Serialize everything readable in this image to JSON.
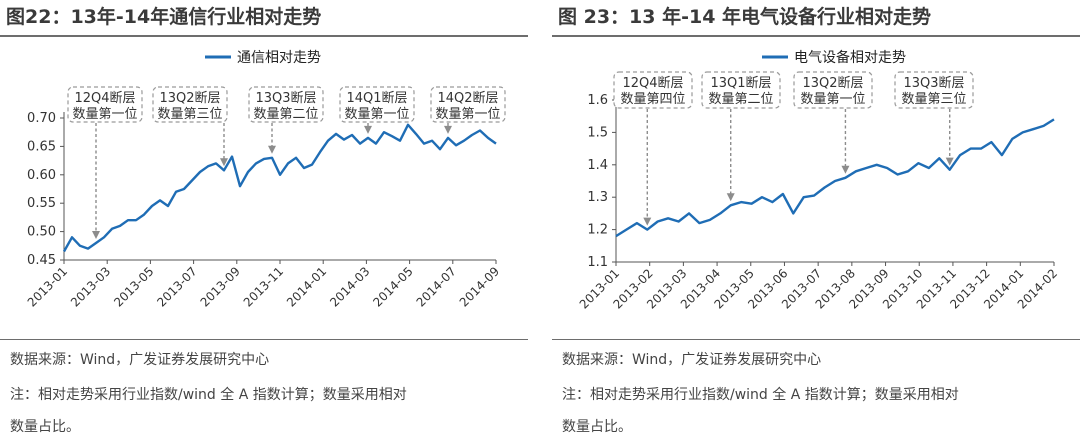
{
  "charts": [
    {
      "figure_title": "图22：13年-14年通信行业相对走势",
      "source": "数据来源：Wind，广发证券发展研究中心",
      "note_line1": "注：相对走势采用行业指数/wind 全 A 指数计算；数量采用相对",
      "note_line2": "数量占比。",
      "colors": {
        "line": "#1f6db5",
        "box": "#9a9a9a",
        "arrow": "#8c8c8c",
        "text": "#333333"
      },
      "chart_data": {
        "type": "line",
        "title": "",
        "legend": "top-center",
        "series": [
          {
            "name": "通信相对走势",
            "values": [
              0.465,
              0.49,
              0.475,
              0.47,
              0.48,
              0.49,
              0.505,
              0.51,
              0.52,
              0.52,
              0.53,
              0.545,
              0.555,
              0.545,
              0.57,
              0.575,
              0.59,
              0.605,
              0.615,
              0.62,
              0.608,
              0.632,
              0.58,
              0.605,
              0.62,
              0.628,
              0.63,
              0.6,
              0.62,
              0.63,
              0.612,
              0.618,
              0.64,
              0.66,
              0.672,
              0.662,
              0.67,
              0.655,
              0.665,
              0.655,
              0.675,
              0.668,
              0.66,
              0.688,
              0.672,
              0.655,
              0.66,
              0.645,
              0.665,
              0.652,
              0.66,
              0.67,
              0.678,
              0.665,
              0.655
            ]
          }
        ],
        "x_range": [
          "2013-01",
          "2014-12"
        ],
        "x_tick_labels": [
          "2013-01",
          "2013-03",
          "2013-05",
          "2013-07",
          "2013-09",
          "2013-11",
          "2014-01",
          "2014-03",
          "2014-05",
          "2014-07",
          "2014-09"
        ],
        "y_tick_labels": [
          "0.45",
          "0.50",
          "0.55",
          "0.60",
          "0.65",
          "0.70"
        ],
        "ylim": [
          0.45,
          0.7
        ],
        "annotations": [
          {
            "line1": "12Q4断层",
            "line2": "数量第一位",
            "point_index": 4
          },
          {
            "line1": "13Q2断层",
            "line2": "数量第三位",
            "point_index": 20
          },
          {
            "line1": "13Q3断层",
            "line2": "数量第二位",
            "point_index": 26
          },
          {
            "line1": "14Q1断层",
            "line2": "数量第一位",
            "point_index": 38
          },
          {
            "line1": "14Q2断层",
            "line2": "数量第一位",
            "point_index": 48
          }
        ]
      }
    },
    {
      "figure_title": "图 23：13 年-14 年电气设备行业相对走势",
      "source": "数据来源：Wind，广发证券发展研究中心",
      "note_line1": "注：相对走势采用行业指数/wind 全 A 指数计算；数量采用相对",
      "note_line2": "数量占比。",
      "colors": {
        "line": "#1f6db5",
        "box": "#9a9a9a",
        "arrow": "#8c8c8c",
        "text": "#333333"
      },
      "chart_data": {
        "type": "line",
        "title": "",
        "legend": "top-center",
        "series": [
          {
            "name": "电气设备相对走势",
            "values": [
              1.18,
              1.2,
              1.22,
              1.2,
              1.225,
              1.235,
              1.225,
              1.25,
              1.22,
              1.23,
              1.25,
              1.275,
              1.285,
              1.28,
              1.3,
              1.285,
              1.31,
              1.25,
              1.3,
              1.305,
              1.33,
              1.35,
              1.36,
              1.38,
              1.39,
              1.4,
              1.39,
              1.37,
              1.38,
              1.405,
              1.39,
              1.42,
              1.385,
              1.43,
              1.45,
              1.45,
              1.47,
              1.43,
              1.48,
              1.5,
              1.51,
              1.52,
              1.54
            ]
          }
        ],
        "x_range": [
          "2013-01",
          "2014-02"
        ],
        "x_tick_labels": [
          "2013-01",
          "2013-02",
          "2013-03",
          "2013-04",
          "2013-05",
          "2013-06",
          "2013-07",
          "2013-08",
          "2013-09",
          "2013-10",
          "2013-11",
          "2013-12",
          "2014-01",
          "2014-02"
        ],
        "y_tick_labels": [
          "1.1",
          "1.2",
          "1.3",
          "1.4",
          "1.5",
          "1.6"
        ],
        "ylim": [
          1.1,
          1.6
        ],
        "annotations": [
          {
            "line1": "12Q4断层",
            "line2": "数量第四位",
            "point_index": 3
          },
          {
            "line1": "13Q1断层",
            "line2": "数量第二位",
            "point_index": 11
          },
          {
            "line1": "13Q2断层",
            "line2": "数量第一位",
            "point_index": 22
          },
          {
            "line1": "13Q3断层",
            "line2": "数量第三位",
            "point_index": 32
          }
        ]
      }
    }
  ]
}
